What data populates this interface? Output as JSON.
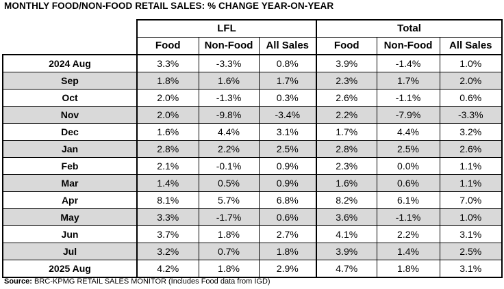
{
  "title": "MONTHLY FOOD/NON-FOOD RETAIL SALES: % CHANGE YEAR-ON-YEAR",
  "groups": {
    "lfl": "LFL",
    "total": "Total"
  },
  "columns": [
    "Food",
    "Non-Food",
    "All Sales",
    "Food",
    "Non-Food",
    "All Sales"
  ],
  "rows": [
    {
      "label": "2024 Aug",
      "values": [
        "3.3%",
        "-3.3%",
        "0.8%",
        "3.9%",
        "-1.4%",
        "1.0%"
      ]
    },
    {
      "label": "Sep",
      "values": [
        "1.8%",
        "1.6%",
        "1.7%",
        "2.3%",
        "1.7%",
        "2.0%"
      ]
    },
    {
      "label": "Oct",
      "values": [
        "2.0%",
        "-1.3%",
        "0.3%",
        "2.6%",
        "-1.1%",
        "0.6%"
      ]
    },
    {
      "label": "Nov",
      "values": [
        "2.0%",
        "-9.8%",
        "-3.4%",
        "2.2%",
        "-7.9%",
        "-3.3%"
      ]
    },
    {
      "label": "Dec",
      "values": [
        "1.6%",
        "4.4%",
        "3.1%",
        "1.7%",
        "4.4%",
        "3.2%"
      ]
    },
    {
      "label": "Jan",
      "values": [
        "2.8%",
        "2.2%",
        "2.5%",
        "2.8%",
        "2.5%",
        "2.6%"
      ]
    },
    {
      "label": "Feb",
      "values": [
        "2.1%",
        "-0.1%",
        "0.9%",
        "2.3%",
        "0.0%",
        "1.1%"
      ]
    },
    {
      "label": "Mar",
      "values": [
        "1.4%",
        "0.5%",
        "0.9%",
        "1.6%",
        "0.6%",
        "1.1%"
      ]
    },
    {
      "label": "Apr",
      "values": [
        "8.1%",
        "5.7%",
        "6.8%",
        "8.2%",
        "6.1%",
        "7.0%"
      ]
    },
    {
      "label": "May",
      "values": [
        "3.3%",
        "-1.7%",
        "0.6%",
        "3.6%",
        "-1.1%",
        "1.0%"
      ]
    },
    {
      "label": "Jun",
      "values": [
        "3.7%",
        "1.8%",
        "2.7%",
        "4.1%",
        "2.2%",
        "3.1%"
      ]
    },
    {
      "label": "Jul",
      "values": [
        "3.2%",
        "0.7%",
        "1.8%",
        "3.9%",
        "1.4%",
        "2.5%"
      ]
    },
    {
      "label": "2025 Aug",
      "values": [
        "4.2%",
        "1.8%",
        "2.9%",
        "4.7%",
        "1.8%",
        "3.1%"
      ]
    }
  ],
  "source": {
    "label": "Source:",
    "text": " BRC-KPMG RETAIL SALES MONITOR (Includes Food data from IGD)"
  },
  "colors": {
    "shade": "#d9d9d9"
  }
}
